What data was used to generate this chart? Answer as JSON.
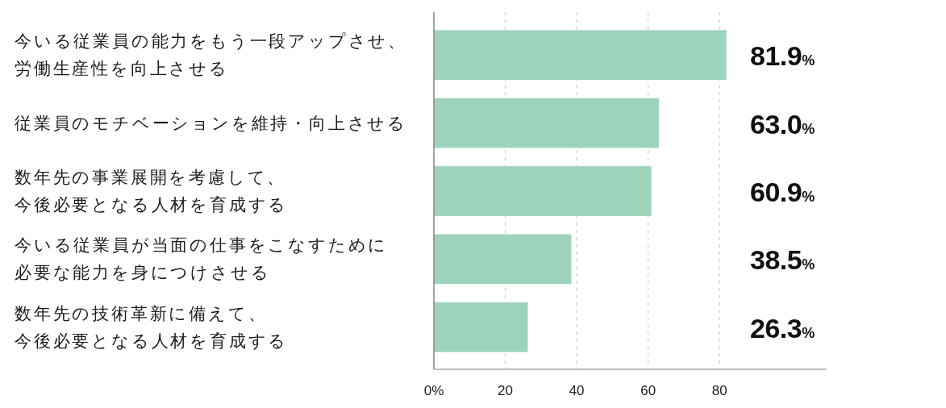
{
  "chart_data": {
    "type": "bar",
    "orientation": "horizontal",
    "categories": [
      "今いる従業員の能力をもう一段アップさせ、労働生産性を向上させる",
      "従業員のモチベーションを維持・向上させる",
      "数年先の事業展開を考慮して、今後必要となる人材を育成する",
      "今いる従業員が当面の仕事をこなすために必要な能力を身につけさせる",
      "数年先の技術革新に備えて、今後必要となる人材を育成する"
    ],
    "values": [
      81.9,
      63.0,
      60.9,
      38.5,
      26.3
    ],
    "color": "#9dd3ba",
    "xlim": [
      0,
      110
    ],
    "xticks": [
      {
        "value": 0,
        "label": "0%"
      },
      20,
      40,
      60,
      80
    ],
    "grid": "x",
    "value_labels": [
      "81.9%",
      "63.0%",
      "60.9%",
      "38.5%",
      "26.3%"
    ]
  }
}
